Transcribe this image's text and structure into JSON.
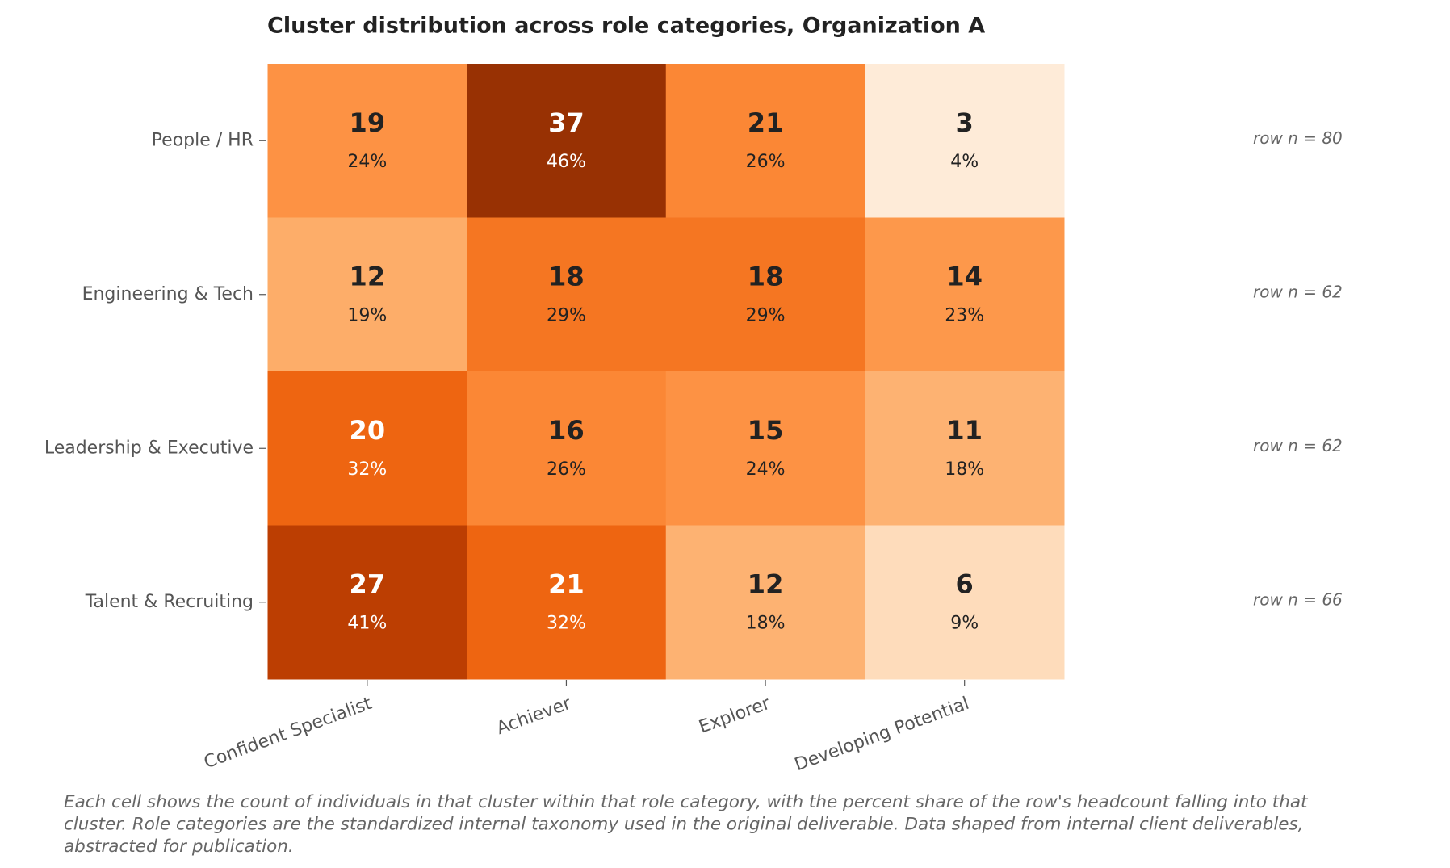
{
  "chart_data": {
    "type": "heatmap",
    "title": "Cluster distribution across role categories, Organization A",
    "rows": [
      "People / HR",
      "Engineering & Tech",
      "Leadership & Executive",
      "Talent & Recruiting"
    ],
    "columns": [
      "Confident Specialist",
      "Achiever",
      "Explorer",
      "Developing Potential"
    ],
    "values": [
      [
        19,
        37,
        21,
        3
      ],
      [
        12,
        18,
        18,
        14
      ],
      [
        20,
        16,
        15,
        11
      ],
      [
        27,
        21,
        12,
        6
      ]
    ],
    "shares": [
      [
        24,
        46,
        26,
        4
      ],
      [
        19,
        29,
        29,
        23
      ],
      [
        32,
        26,
        24,
        18
      ],
      [
        41,
        32,
        18,
        9
      ]
    ],
    "share_labels": [
      [
        "24%",
        "46%",
        "26%",
        "4%"
      ],
      [
        "19%",
        "29%",
        "29%",
        "23%"
      ],
      [
        "32%",
        "26%",
        "24%",
        "18%"
      ],
      [
        "41%",
        "32%",
        "18%",
        "9%"
      ]
    ],
    "row_totals": [
      80,
      62,
      62,
      66
    ],
    "row_total_labels": [
      "row n = 80",
      "row n = 62",
      "row n = 62",
      "row n = 66"
    ],
    "colormap": [
      "#fff5eb",
      "#fee6ce",
      "#fdd0a2",
      "#fdae6b",
      "#fd8d3c",
      "#f16913",
      "#d94801",
      "#a63603",
      "#7f2704"
    ],
    "clim": [
      0,
      50
    ],
    "footnote": [
      "Each cell shows the count of individuals in that cluster within that role category, with the percent share of the row's headcount falling into that",
      "cluster. Role categories are the standardized internal taxonomy used in the original deliverable. Data shaped from internal client deliverables,",
      "abstracted for publication."
    ]
  }
}
